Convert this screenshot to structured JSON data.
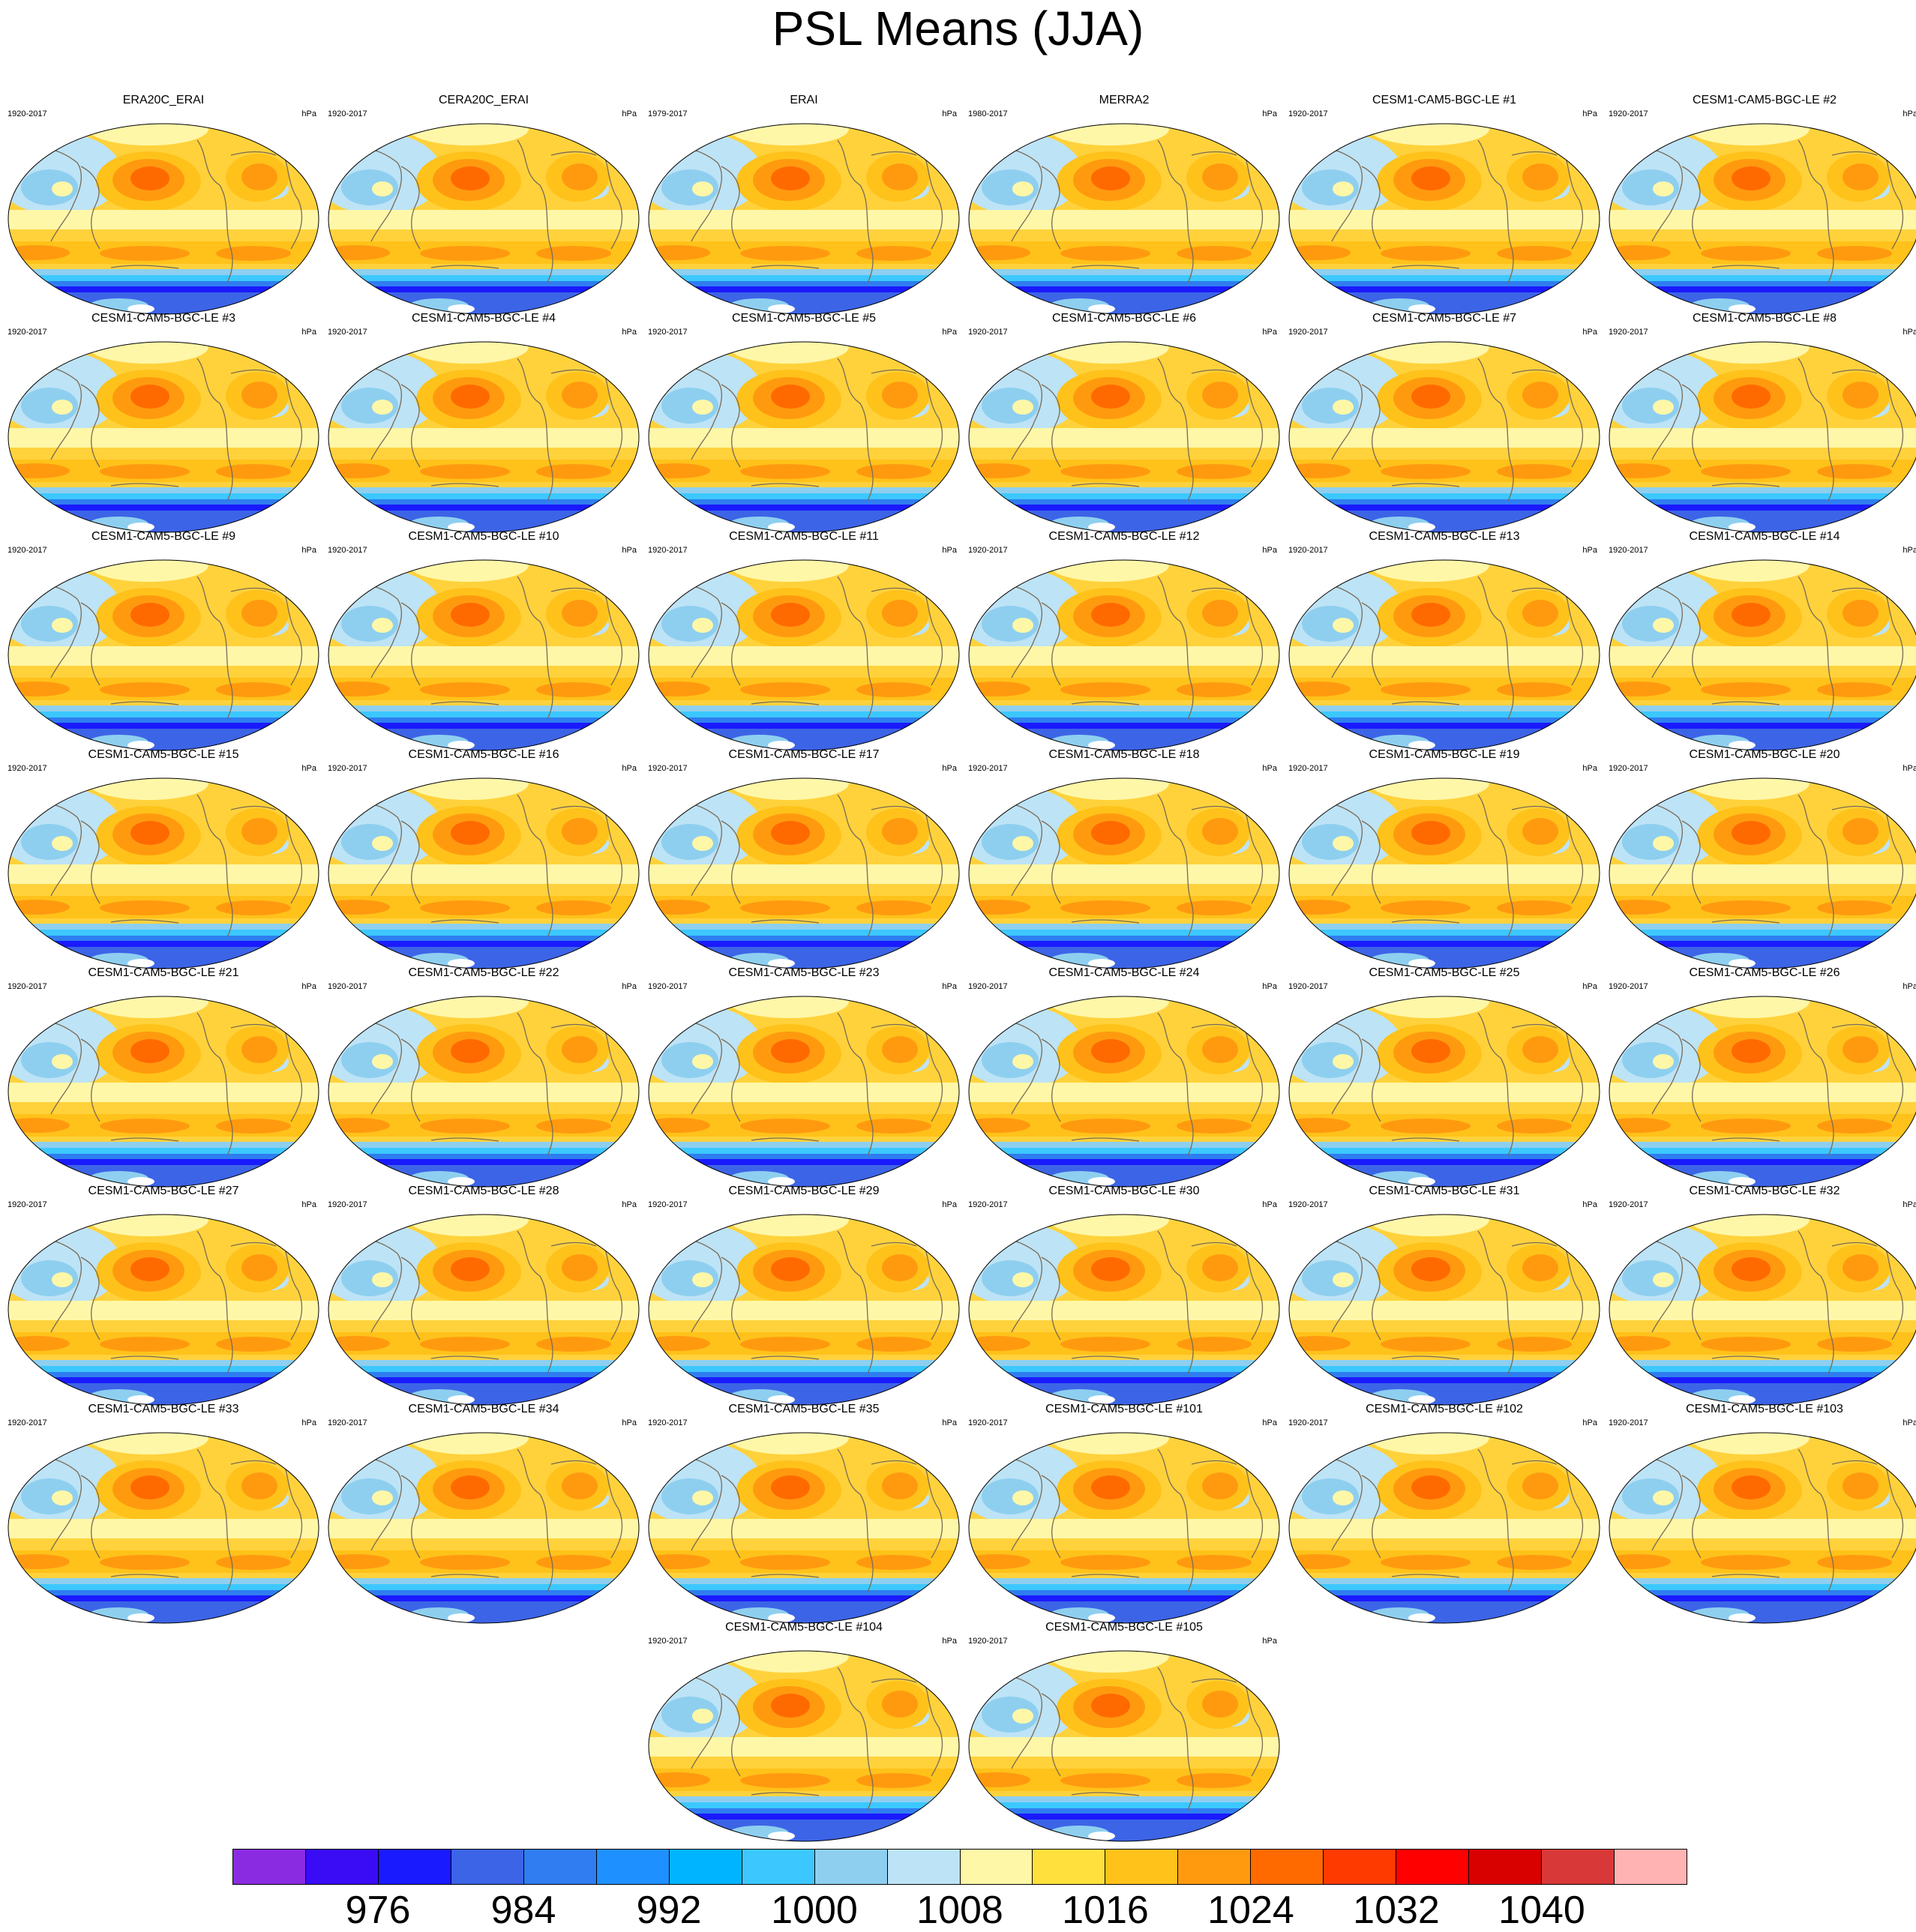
{
  "title": "PSL Means (JJA)",
  "colorbar": {
    "colors": [
      "#8a2be2",
      "#3a0bf5",
      "#1a1aff",
      "#3c64e6",
      "#2f7df0",
      "#1e90ff",
      "#00b4ff",
      "#3cc8ff",
      "#8ecff0",
      "#bde3f6",
      "#fff7a8",
      "#ffe03c",
      "#ffc21a",
      "#ff9a0f",
      "#ff6a00",
      "#ff3a00",
      "#ff0000",
      "#d90000",
      "#d93838",
      "#ffb3b3"
    ],
    "labels": [
      "976",
      "984",
      "992",
      "1000",
      "1008",
      "1016",
      "1024",
      "1032",
      "1040"
    ]
  },
  "panels": [
    {
      "name": "ERA20C_ERAI",
      "years": "1920-2017",
      "units": "hPa"
    },
    {
      "name": "CERA20C_ERAI",
      "years": "1920-2017",
      "units": "hPa"
    },
    {
      "name": "ERAI",
      "years": "1979-2017",
      "units": "hPa"
    },
    {
      "name": "MERRA2",
      "years": "1980-2017",
      "units": "hPa"
    },
    {
      "name": "CESM1-CAM5-BGC-LE #1",
      "years": "1920-2017",
      "units": "hPa"
    },
    {
      "name": "CESM1-CAM5-BGC-LE #2",
      "years": "1920-2017",
      "units": "hPa"
    },
    {
      "name": "CESM1-CAM5-BGC-LE #3",
      "years": "1920-2017",
      "units": "hPa"
    },
    {
      "name": "CESM1-CAM5-BGC-LE #4",
      "years": "1920-2017",
      "units": "hPa"
    },
    {
      "name": "CESM1-CAM5-BGC-LE #5",
      "years": "1920-2017",
      "units": "hPa"
    },
    {
      "name": "CESM1-CAM5-BGC-LE #6",
      "years": "1920-2017",
      "units": "hPa"
    },
    {
      "name": "CESM1-CAM5-BGC-LE #7",
      "years": "1920-2017",
      "units": "hPa"
    },
    {
      "name": "CESM1-CAM5-BGC-LE #8",
      "years": "1920-2017",
      "units": "hPa"
    },
    {
      "name": "CESM1-CAM5-BGC-LE #9",
      "years": "1920-2017",
      "units": "hPa"
    },
    {
      "name": "CESM1-CAM5-BGC-LE #10",
      "years": "1920-2017",
      "units": "hPa"
    },
    {
      "name": "CESM1-CAM5-BGC-LE #11",
      "years": "1920-2017",
      "units": "hPa"
    },
    {
      "name": "CESM1-CAM5-BGC-LE #12",
      "years": "1920-2017",
      "units": "hPa"
    },
    {
      "name": "CESM1-CAM5-BGC-LE #13",
      "years": "1920-2017",
      "units": "hPa"
    },
    {
      "name": "CESM1-CAM5-BGC-LE #14",
      "years": "1920-2017",
      "units": "hPa"
    },
    {
      "name": "CESM1-CAM5-BGC-LE #15",
      "years": "1920-2017",
      "units": "hPa"
    },
    {
      "name": "CESM1-CAM5-BGC-LE #16",
      "years": "1920-2017",
      "units": "hPa"
    },
    {
      "name": "CESM1-CAM5-BGC-LE #17",
      "years": "1920-2017",
      "units": "hPa"
    },
    {
      "name": "CESM1-CAM5-BGC-LE #18",
      "years": "1920-2017",
      "units": "hPa"
    },
    {
      "name": "CESM1-CAM5-BGC-LE #19",
      "years": "1920-2017",
      "units": "hPa"
    },
    {
      "name": "CESM1-CAM5-BGC-LE #20",
      "years": "1920-2017",
      "units": "hPa"
    },
    {
      "name": "CESM1-CAM5-BGC-LE #21",
      "years": "1920-2017",
      "units": "hPa"
    },
    {
      "name": "CESM1-CAM5-BGC-LE #22",
      "years": "1920-2017",
      "units": "hPa"
    },
    {
      "name": "CESM1-CAM5-BGC-LE #23",
      "years": "1920-2017",
      "units": "hPa"
    },
    {
      "name": "CESM1-CAM5-BGC-LE #24",
      "years": "1920-2017",
      "units": "hPa"
    },
    {
      "name": "CESM1-CAM5-BGC-LE #25",
      "years": "1920-2017",
      "units": "hPa"
    },
    {
      "name": "CESM1-CAM5-BGC-LE #26",
      "years": "1920-2017",
      "units": "hPa"
    },
    {
      "name": "CESM1-CAM5-BGC-LE #27",
      "years": "1920-2017",
      "units": "hPa"
    },
    {
      "name": "CESM1-CAM5-BGC-LE #28",
      "years": "1920-2017",
      "units": "hPa"
    },
    {
      "name": "CESM1-CAM5-BGC-LE #29",
      "years": "1920-2017",
      "units": "hPa"
    },
    {
      "name": "CESM1-CAM5-BGC-LE #30",
      "years": "1920-2017",
      "units": "hPa"
    },
    {
      "name": "CESM1-CAM5-BGC-LE #31",
      "years": "1920-2017",
      "units": "hPa"
    },
    {
      "name": "CESM1-CAM5-BGC-LE #32",
      "years": "1920-2017",
      "units": "hPa"
    },
    {
      "name": "CESM1-CAM5-BGC-LE #33",
      "years": "1920-2017",
      "units": "hPa"
    },
    {
      "name": "CESM1-CAM5-BGC-LE #34",
      "years": "1920-2017",
      "units": "hPa"
    },
    {
      "name": "CESM1-CAM5-BGC-LE #35",
      "years": "1920-2017",
      "units": "hPa"
    },
    {
      "name": "CESM1-CAM5-BGC-LE #101",
      "years": "1920-2017",
      "units": "hPa"
    },
    {
      "name": "CESM1-CAM5-BGC-LE #102",
      "years": "1920-2017",
      "units": "hPa"
    },
    {
      "name": "CESM1-CAM5-BGC-LE #103",
      "years": "1920-2017",
      "units": "hPa"
    },
    {
      "name": "CESM1-CAM5-BGC-LE #104",
      "years": "1920-2017",
      "units": "hPa"
    },
    {
      "name": "CESM1-CAM5-BGC-LE #105",
      "years": "1920-2017",
      "units": "hPa"
    }
  ]
}
